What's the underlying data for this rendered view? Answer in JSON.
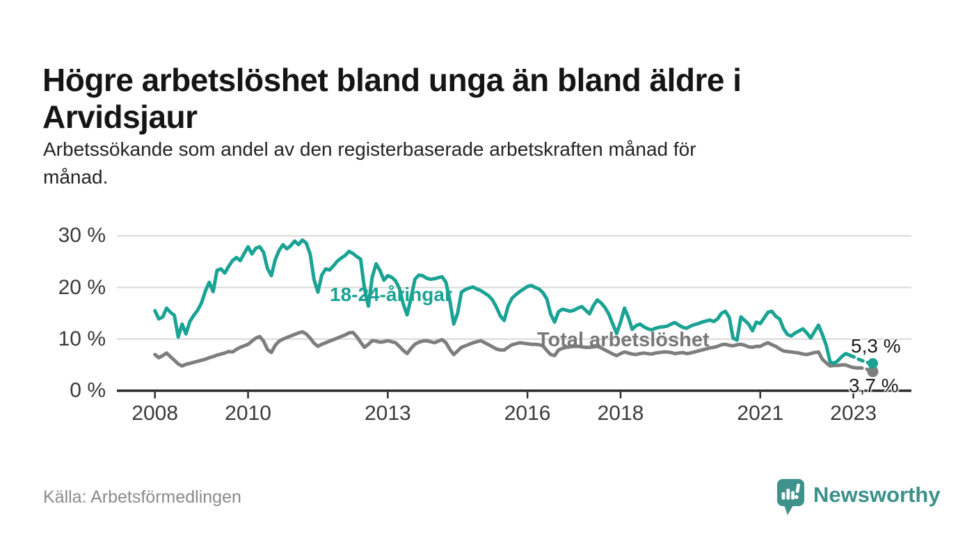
{
  "title_lines": [
    "Högre arbetslöshet bland unga än bland äldre i",
    "Arvidsjaur"
  ],
  "subtitle_lines": [
    "Arbetssökande som andel av den registerbaserade arbetskraften månad för",
    "månad."
  ],
  "source": "Källa: Arbetsförmedlingen",
  "brand": {
    "name": "Newsworthy",
    "color": "#3B918A",
    "icon": "bar-chart-speech-bubble-icon"
  },
  "colors": {
    "young_line": "#1AA394",
    "total_line": "#7E7E7E",
    "total_label": "#787878",
    "grid": "#d8d8d8",
    "axis": "#2b2b2b",
    "tick_text": "#3a3a3a"
  },
  "chart_data": {
    "type": "line",
    "title": "Högre arbetslöshet bland unga än bland äldre i Arvidsjaur",
    "subtitle": "Arbetssökande som andel av den registerbaserade arbetskraften månad för månad.",
    "unit": "%",
    "x_start": 2008.0,
    "x_step_years": 0.0833333,
    "xlim": [
      2007.2,
      2024.25
    ],
    "ylim": [
      0,
      32
    ],
    "grid": "horizontal",
    "legend_position": "inline-labels",
    "x_ticks": [
      {
        "label": "2008",
        "year": 2008
      },
      {
        "label": "2010",
        "year": 2010
      },
      {
        "label": "2013",
        "year": 2013
      },
      {
        "label": "2016",
        "year": 2016
      },
      {
        "label": "2018",
        "year": 2018
      },
      {
        "label": "2021",
        "year": 2021
      },
      {
        "label": "2023",
        "year": 2023
      }
    ],
    "y_ticks": [
      {
        "label": "30 %",
        "value": 30
      },
      {
        "label": "20 %",
        "value": 20
      },
      {
        "label": "10 %",
        "value": 10
      },
      {
        "label": "0 %",
        "value": 0
      }
    ],
    "series": [
      {
        "name": "18-24-åringar",
        "color": "#1AA394",
        "end_label": "5,3 %",
        "end_value": 5.3,
        "dashed_from_index": 179,
        "dot_radius": 7.5,
        "values": [
          15.5,
          13.9,
          14.3,
          16.0,
          15.2,
          14.6,
          10.4,
          12.9,
          11.0,
          13.4,
          14.6,
          15.6,
          17.0,
          19.3,
          21.0,
          19.2,
          23.3,
          23.6,
          22.8,
          24.1,
          25.2,
          25.8,
          25.2,
          26.6,
          27.9,
          26.5,
          27.6,
          27.9,
          26.8,
          23.7,
          22.3,
          25.4,
          27.2,
          28.3,
          27.5,
          28.1,
          29.0,
          28.3,
          29.2,
          28.6,
          26.5,
          21.5,
          19.1,
          22.4,
          23.6,
          23.4,
          24.2,
          25.1,
          25.7,
          26.2,
          27.0,
          26.6,
          26.0,
          25.5,
          19.8,
          16.4,
          22.0,
          24.6,
          23.3,
          21.4,
          22.3,
          22.0,
          21.3,
          19.8,
          16.8,
          14.7,
          18.0,
          21.6,
          22.4,
          22.3,
          21.8,
          21.6,
          21.7,
          21.9,
          22.1,
          21.0,
          17.5,
          12.9,
          15.0,
          19.1,
          19.6,
          19.9,
          20.1,
          19.7,
          19.4,
          18.9,
          18.4,
          17.6,
          16.2,
          14.5,
          13.6,
          16.4,
          17.9,
          18.6,
          19.2,
          19.7,
          20.2,
          20.4,
          20.0,
          19.7,
          19.0,
          17.8,
          14.8,
          13.3,
          15.3,
          15.8,
          15.6,
          15.4,
          15.6,
          16.0,
          16.3,
          15.6,
          14.9,
          16.5,
          17.6,
          17.0,
          16.1,
          14.8,
          12.9,
          11.1,
          13.3,
          16.0,
          14.2,
          11.9,
          12.6,
          12.9,
          12.4,
          12.0,
          11.8,
          12.1,
          12.3,
          12.4,
          12.5,
          12.9,
          13.2,
          12.7,
          12.3,
          12.1,
          12.5,
          12.8,
          13.0,
          13.3,
          13.5,
          13.7,
          13.4,
          13.9,
          15.0,
          15.4,
          14.2,
          10.2,
          9.8,
          14.3,
          13.6,
          12.9,
          11.6,
          13.3,
          13.0,
          14.1,
          15.2,
          15.4,
          14.4,
          13.9,
          12.0,
          10.9,
          10.6,
          11.2,
          11.6,
          12.0,
          11.2,
          10.2,
          11.5,
          12.7,
          10.9,
          8.8,
          5.6,
          5.3,
          5.8,
          6.6,
          7.2,
          6.9,
          6.6,
          6.2,
          5.9,
          5.6,
          5.4,
          5.3
        ]
      },
      {
        "name": "Total arbetslöshet",
        "color": "#7E7E7E",
        "end_label": "3,7 %",
        "end_value": 3.7,
        "dashed_from_index": 181,
        "dot_radius": 8,
        "values": [
          7.0,
          6.4,
          6.8,
          7.3,
          6.6,
          5.9,
          5.2,
          4.8,
          5.1,
          5.3,
          5.5,
          5.7,
          5.9,
          6.1,
          6.4,
          6.6,
          6.9,
          7.1,
          7.3,
          7.6,
          7.5,
          8.0,
          8.4,
          8.7,
          9.0,
          9.6,
          10.2,
          10.5,
          9.6,
          8.0,
          7.4,
          8.8,
          9.6,
          10.0,
          10.3,
          10.6,
          10.9,
          11.2,
          11.4,
          11.0,
          10.2,
          9.2,
          8.6,
          9.0,
          9.3,
          9.6,
          9.9,
          10.2,
          10.5,
          10.8,
          11.2,
          11.3,
          10.5,
          9.4,
          8.4,
          9.0,
          9.7,
          9.6,
          9.4,
          9.5,
          9.7,
          9.5,
          9.3,
          8.6,
          7.8,
          7.2,
          8.2,
          9.0,
          9.4,
          9.6,
          9.7,
          9.5,
          9.3,
          9.6,
          9.9,
          9.3,
          8.0,
          7.0,
          7.7,
          8.4,
          8.7,
          9.0,
          9.3,
          9.5,
          9.7,
          9.3,
          8.9,
          8.5,
          8.1,
          7.9,
          7.9,
          8.4,
          8.9,
          9.1,
          9.3,
          9.2,
          9.1,
          9.0,
          9.0,
          8.9,
          8.7,
          7.8,
          7.0,
          6.8,
          7.9,
          8.2,
          8.4,
          8.5,
          8.6,
          8.6,
          8.5,
          8.4,
          8.4,
          8.5,
          8.6,
          8.3,
          7.9,
          7.5,
          7.1,
          6.8,
          7.2,
          7.5,
          7.3,
          7.1,
          7.0,
          7.2,
          7.3,
          7.2,
          7.1,
          7.3,
          7.4,
          7.5,
          7.5,
          7.4,
          7.2,
          7.3,
          7.4,
          7.2,
          7.3,
          7.5,
          7.7,
          7.9,
          8.1,
          8.3,
          8.4,
          8.6,
          8.9,
          9.0,
          8.8,
          8.7,
          8.9,
          9.0,
          8.8,
          8.5,
          8.4,
          8.6,
          8.6,
          9.0,
          9.3,
          8.9,
          8.6,
          8.1,
          7.7,
          7.6,
          7.5,
          7.4,
          7.3,
          7.1,
          7.0,
          7.2,
          7.4,
          7.5,
          6.1,
          5.4,
          4.8,
          4.9,
          4.9,
          5.0,
          5.0,
          4.7,
          4.5,
          4.4,
          4.4,
          4.3,
          4.0,
          3.7
        ]
      }
    ]
  }
}
